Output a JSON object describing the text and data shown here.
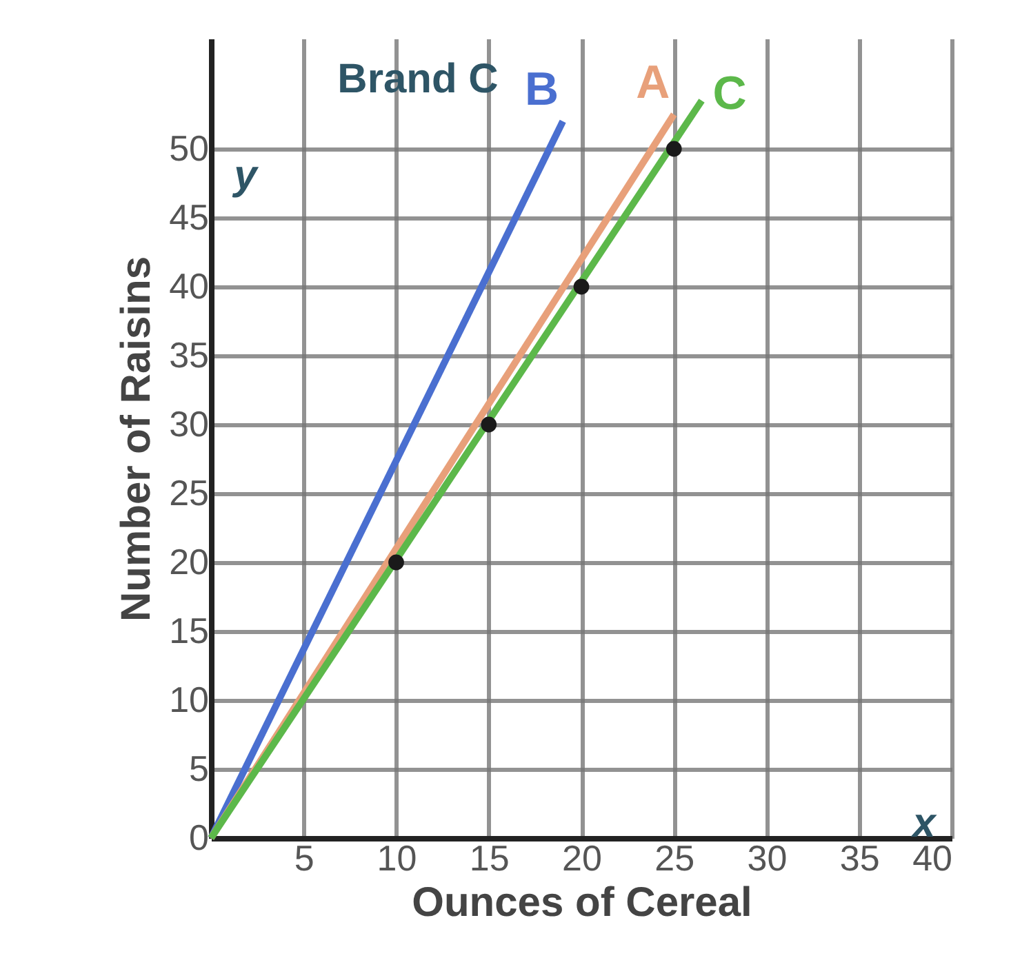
{
  "chart_data": {
    "type": "line",
    "xlabel": "Ounces of Cereal",
    "ylabel": "Number of Raisins",
    "xlim": [
      0,
      40
    ],
    "ylim": [
      0,
      58
    ],
    "xticks": [
      5,
      10,
      15,
      20,
      25,
      30,
      35,
      40
    ],
    "yticks": [
      0,
      5,
      10,
      15,
      20,
      25,
      30,
      35,
      40,
      45,
      50
    ],
    "grid": true,
    "legend": false,
    "line_style": "solid",
    "series": [
      {
        "name": "B",
        "color": "#4a6fd0",
        "x": [
          0,
          19
        ],
        "values": [
          0,
          52
        ]
      },
      {
        "name": "A",
        "color": "#e8a07a",
        "x": [
          0,
          25
        ],
        "values": [
          0,
          52.5
        ]
      },
      {
        "name": "C",
        "color": "#5cb84a",
        "x": [
          0,
          26.5
        ],
        "values": [
          0,
          53.5
        ]
      },
      {
        "type": "scatter",
        "color": "#1a1a1a",
        "marker": "circle",
        "x": [
          10,
          15,
          20,
          25
        ],
        "values": [
          20,
          30,
          40,
          50
        ]
      }
    ],
    "annotations": [
      "Brand C",
      "y",
      "x"
    ]
  }
}
